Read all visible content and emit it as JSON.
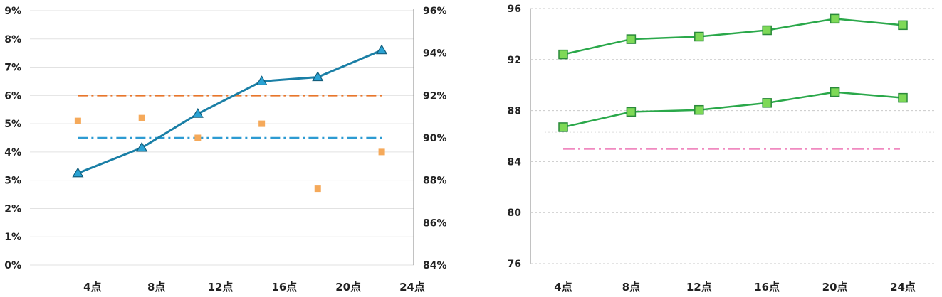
{
  "chart_data": [
    {
      "type": "line",
      "x_tick_labels": [
        "4点",
        "8点",
        "12点",
        "16点",
        "20点",
        "24点"
      ],
      "xlim": [
        0,
        24
      ],
      "y_left": {
        "ticks": [
          "0%",
          "1%",
          "2%",
          "3%",
          "4%",
          "5%",
          "6%",
          "7%",
          "8%",
          "9%"
        ],
        "ylim": [
          0,
          9
        ],
        "unit": "%"
      },
      "y_right": {
        "ticks": [
          "84%",
          "86%",
          "88%",
          "90%",
          "92%",
          "94%",
          "96%"
        ],
        "ylim": [
          84,
          96
        ],
        "unit": "%"
      },
      "grid": true,
      "series": [
        {
          "kind": "line-triangle",
          "axis": "left",
          "color": "#1a7fa6",
          "points": [
            [
              3,
              3.25
            ],
            [
              7,
              4.15
            ],
            [
              10.5,
              5.35
            ],
            [
              14.5,
              6.5
            ],
            [
              18,
              6.65
            ],
            [
              22,
              7.6
            ]
          ]
        },
        {
          "kind": "scatter-square",
          "axis": "left",
          "color": "#f5a95a",
          "points": [
            [
              3,
              5.1
            ],
            [
              7,
              5.2
            ],
            [
              10.5,
              4.5
            ],
            [
              14.5,
              5.0
            ],
            [
              18,
              2.7
            ],
            [
              22,
              4.0
            ]
          ]
        },
        {
          "kind": "ref-dashdot",
          "axis": "left",
          "color": "#e8762b",
          "value": 6.0,
          "x_range": [
            3,
            22
          ]
        },
        {
          "kind": "ref-dashdot",
          "axis": "left",
          "color": "#2d9bd2",
          "value": 4.5,
          "x_range": [
            3,
            22
          ]
        }
      ]
    },
    {
      "type": "line",
      "x_tick_labels": [
        "4点",
        "8点",
        "12点",
        "16点",
        "20点",
        "24点"
      ],
      "ylim": [
        76,
        96
      ],
      "y_ticks": [
        "76",
        "80",
        "84",
        "88",
        "92",
        "96"
      ],
      "grid": true,
      "series": [
        {
          "kind": "line-square",
          "color": "#2aa84a",
          "values": [
            92.4,
            93.6,
            93.8,
            94.3,
            95.2,
            94.7
          ]
        },
        {
          "kind": "line-square",
          "color": "#2aa84a",
          "values": [
            86.7,
            87.9,
            88.05,
            88.6,
            89.45,
            89.0
          ]
        },
        {
          "kind": "ref-dashdot",
          "color": "#f08ac0",
          "value": 85.0
        }
      ]
    }
  ]
}
